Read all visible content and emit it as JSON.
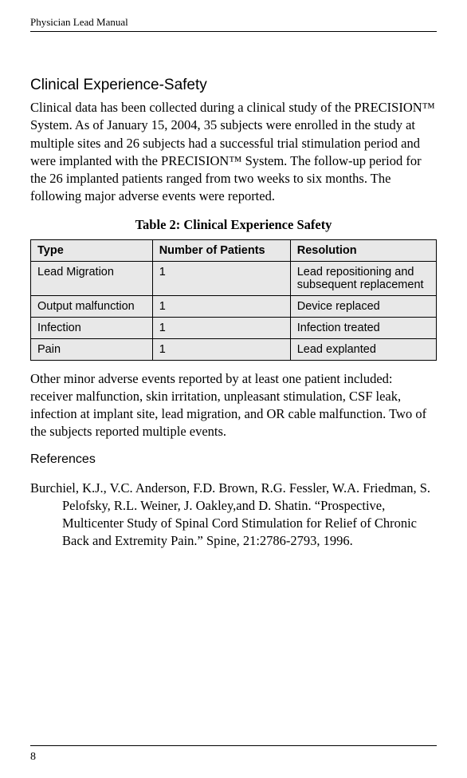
{
  "header": {
    "title": "Physician Lead Manual"
  },
  "section1": {
    "heading": "Clinical Experience-Safety",
    "para1": "Clinical data has been collected during a clinical study of the PRECI­SION™ System. As of January 15, 2004, 35 subjects were enrolled in the study at multiple sites and 26 subjects had a successful trial stimu­lation period and were implanted with the PRECISION™ System. The follow-up period for the 26 implanted patients ranged from two weeks to six months. The following major adverse events were reported."
  },
  "table": {
    "caption": "Table 2: Clinical Experience Safety",
    "columns": [
      "Type",
      "Number of Patients",
      "Resolution"
    ],
    "rows": [
      {
        "type": "Lead Migration",
        "num": "1",
        "res": "Lead repositioning and subsequent replacement"
      },
      {
        "type": "Output malfunction",
        "num": "1",
        "res": "Device replaced"
      },
      {
        "type": "Infection",
        "num": "1",
        "res": "Infection treated"
      },
      {
        "type": "Pain",
        "num": "1",
        "res": "Lead explanted"
      }
    ]
  },
  "section2": {
    "para": "Other minor adverse events reported by at least one patient included: receiver malfunction, skin irritation, unpleasant stimulation, CSF leak, infection at implant site, lead migration, and OR cable malfunc­tion. Two of the subjects reported multiple events."
  },
  "references": {
    "heading": "References",
    "entry": "Burchiel, K.J., V.C. Anderson, F.D. Brown, R.G. Fessler, W.A. Friedman, S. Pelofsky, R.L. Weiner, J. Oakley,and D. Shatin. “Prospective, Multicenter Study of Spinal Cord Stimulation for Relief of Chronic Back and Extremity Pain.” Spine, 21:2786-2793, 1996."
  },
  "footer": {
    "page": "8"
  },
  "styles": {
    "body_font": "Georgia",
    "heading_font": "Trebuchet MS",
    "table_font": "Arial",
    "table_bg": "#e8e8e8",
    "text_color": "#000000",
    "page_bg": "#ffffff"
  }
}
